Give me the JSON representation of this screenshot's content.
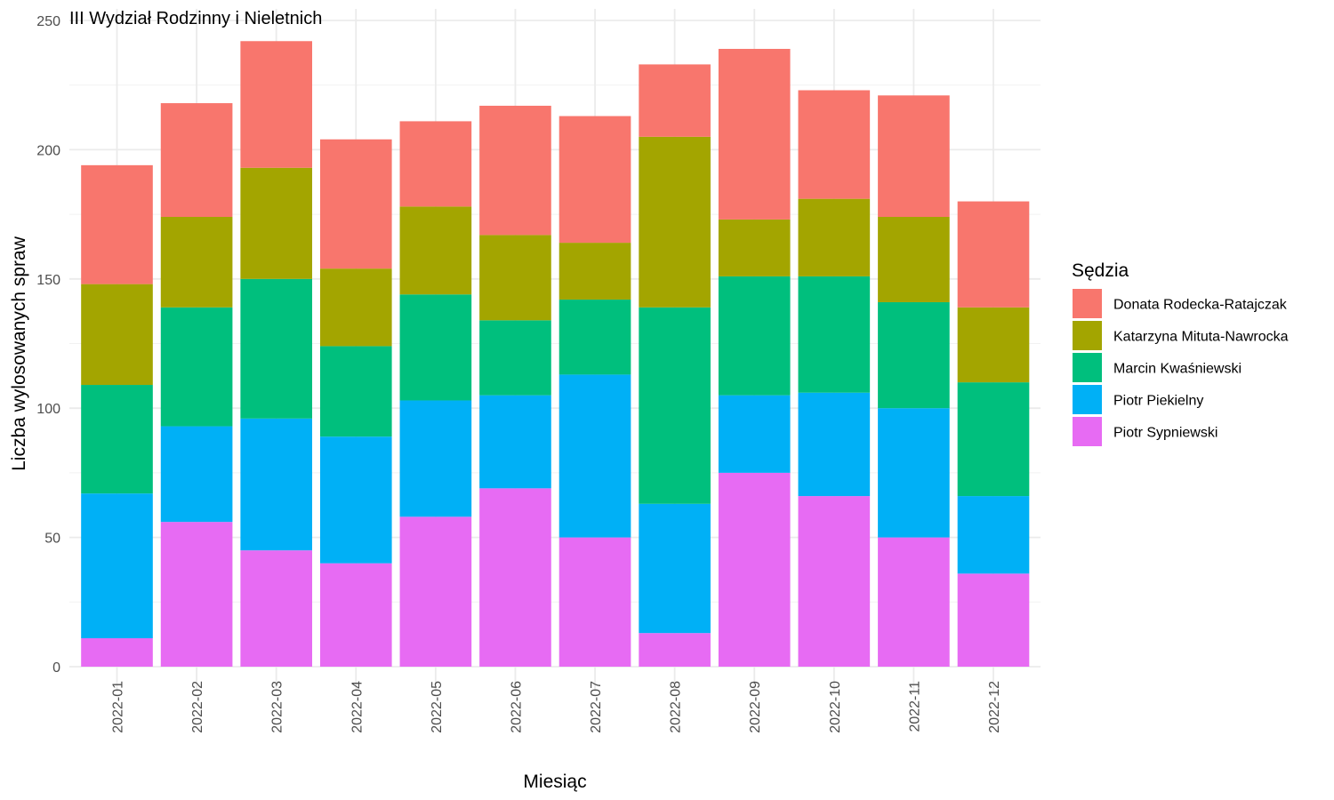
{
  "chart_data": {
    "type": "bar",
    "stacked": true,
    "title": "III Wydział Rodzinny i Nieletnich",
    "xlabel": "Miesiąc",
    "ylabel": "Liczba wylosowanych spraw",
    "ylim": [
      0,
      250
    ],
    "y_ticks": [
      "0",
      "50",
      "100",
      "150",
      "200",
      "250"
    ],
    "grid": true,
    "legend_title": "Sędzia",
    "legend_position": "right",
    "categories": [
      "2022-01",
      "2022-02",
      "2022-03",
      "2022-04",
      "2022-05",
      "2022-06",
      "2022-07",
      "2022-08",
      "2022-09",
      "2022-10",
      "2022-11",
      "2022-12"
    ],
    "series": [
      {
        "name": "Donata Rodecka-Ratajczak",
        "color": "#F8766D",
        "values": [
          46,
          44,
          49,
          50,
          33,
          50,
          49,
          28,
          66,
          42,
          47,
          41
        ]
      },
      {
        "name": "Katarzyna Mituta-Nawrocka",
        "color": "#A3A500",
        "values": [
          39,
          35,
          43,
          30,
          34,
          33,
          22,
          66,
          22,
          30,
          33,
          29
        ]
      },
      {
        "name": "Marcin Kwaśniewski",
        "color": "#00BF7D",
        "values": [
          42,
          46,
          54,
          35,
          41,
          29,
          29,
          76,
          46,
          45,
          41,
          44
        ]
      },
      {
        "name": "Piotr Piekielny",
        "color": "#00B0F6",
        "values": [
          56,
          37,
          51,
          49,
          45,
          36,
          63,
          50,
          30,
          40,
          50,
          30
        ]
      },
      {
        "name": "Piotr Sypniewski",
        "color": "#E76BF3",
        "values": [
          11,
          56,
          45,
          40,
          58,
          69,
          50,
          13,
          75,
          66,
          50,
          36
        ]
      }
    ]
  }
}
